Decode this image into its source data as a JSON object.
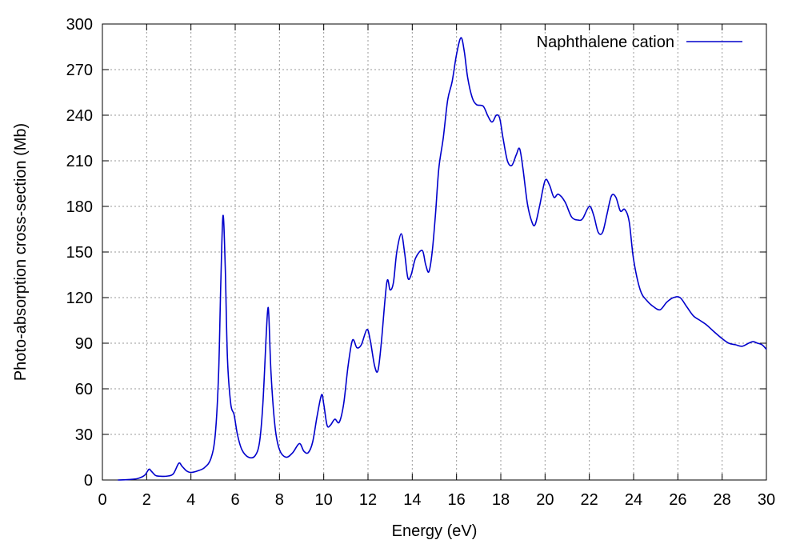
{
  "chart_data": {
    "type": "line",
    "title": "",
    "xlabel": "Energy (eV)",
    "ylabel": "Photo-absorption cross-section (Mb)",
    "xlim": [
      0,
      30
    ],
    "ylim": [
      0,
      300
    ],
    "xticks": [
      0,
      2,
      4,
      6,
      8,
      10,
      12,
      14,
      16,
      18,
      20,
      22,
      24,
      26,
      28,
      30
    ],
    "yticks": [
      0,
      30,
      60,
      90,
      120,
      150,
      180,
      210,
      240,
      270,
      300
    ],
    "grid": true,
    "legend_position": "top-right",
    "series": [
      {
        "name": "Naphthalene cation",
        "color": "#0000cc",
        "points": [
          [
            0.7,
            0
          ],
          [
            1.2,
            0.3
          ],
          [
            1.6,
            1
          ],
          [
            1.9,
            3
          ],
          [
            2.1,
            7
          ],
          [
            2.2,
            6
          ],
          [
            2.4,
            3
          ],
          [
            2.6,
            2.5
          ],
          [
            2.9,
            2.5
          ],
          [
            3.2,
            4
          ],
          [
            3.45,
            11
          ],
          [
            3.6,
            9
          ],
          [
            3.8,
            6
          ],
          [
            4.0,
            5
          ],
          [
            4.3,
            6
          ],
          [
            4.6,
            8
          ],
          [
            4.9,
            14
          ],
          [
            5.1,
            30
          ],
          [
            5.25,
            70
          ],
          [
            5.35,
            130
          ],
          [
            5.45,
            174
          ],
          [
            5.55,
            140
          ],
          [
            5.65,
            80
          ],
          [
            5.8,
            50
          ],
          [
            5.95,
            43
          ],
          [
            6.1,
            30
          ],
          [
            6.3,
            20
          ],
          [
            6.6,
            15
          ],
          [
            6.9,
            16
          ],
          [
            7.1,
            25
          ],
          [
            7.25,
            50
          ],
          [
            7.4,
            95
          ],
          [
            7.47,
            112
          ],
          [
            7.52,
            108
          ],
          [
            7.62,
            70
          ],
          [
            7.8,
            35
          ],
          [
            8.0,
            20
          ],
          [
            8.3,
            15
          ],
          [
            8.6,
            18
          ],
          [
            8.9,
            24
          ],
          [
            9.1,
            19
          ],
          [
            9.3,
            18
          ],
          [
            9.5,
            25
          ],
          [
            9.7,
            42
          ],
          [
            9.9,
            56
          ],
          [
            10.0,
            50
          ],
          [
            10.15,
            36
          ],
          [
            10.3,
            36
          ],
          [
            10.5,
            40
          ],
          [
            10.7,
            38
          ],
          [
            10.9,
            50
          ],
          [
            11.1,
            75
          ],
          [
            11.3,
            92
          ],
          [
            11.5,
            87
          ],
          [
            11.7,
            89
          ],
          [
            11.95,
            99
          ],
          [
            12.1,
            92
          ],
          [
            12.3,
            75
          ],
          [
            12.45,
            72
          ],
          [
            12.6,
            90
          ],
          [
            12.85,
            130
          ],
          [
            13.0,
            125
          ],
          [
            13.15,
            130
          ],
          [
            13.3,
            150
          ],
          [
            13.5,
            162
          ],
          [
            13.65,
            150
          ],
          [
            13.8,
            133
          ],
          [
            13.95,
            135
          ],
          [
            14.15,
            146
          ],
          [
            14.45,
            151
          ],
          [
            14.6,
            142
          ],
          [
            14.75,
            137
          ],
          [
            14.9,
            150
          ],
          [
            15.05,
            175
          ],
          [
            15.2,
            205
          ],
          [
            15.4,
            225
          ],
          [
            15.6,
            250
          ],
          [
            15.8,
            262
          ],
          [
            16.0,
            280
          ],
          [
            16.2,
            291
          ],
          [
            16.35,
            282
          ],
          [
            16.5,
            265
          ],
          [
            16.7,
            252
          ],
          [
            16.9,
            247
          ],
          [
            17.2,
            246
          ],
          [
            17.4,
            240
          ],
          [
            17.55,
            236
          ],
          [
            17.65,
            236
          ],
          [
            17.8,
            240
          ],
          [
            17.95,
            238
          ],
          [
            18.1,
            225
          ],
          [
            18.3,
            210
          ],
          [
            18.5,
            207
          ],
          [
            18.7,
            214
          ],
          [
            18.85,
            218
          ],
          [
            19.0,
            205
          ],
          [
            19.2,
            182
          ],
          [
            19.4,
            170
          ],
          [
            19.55,
            168
          ],
          [
            19.75,
            180
          ],
          [
            20.0,
            197
          ],
          [
            20.2,
            194
          ],
          [
            20.4,
            186
          ],
          [
            20.6,
            188
          ],
          [
            20.9,
            183
          ],
          [
            21.2,
            173
          ],
          [
            21.5,
            171
          ],
          [
            21.7,
            172
          ],
          [
            22.0,
            180
          ],
          [
            22.2,
            174
          ],
          [
            22.4,
            163
          ],
          [
            22.6,
            163
          ],
          [
            22.8,
            175
          ],
          [
            23.0,
            187
          ],
          [
            23.2,
            186
          ],
          [
            23.4,
            177
          ],
          [
            23.6,
            178
          ],
          [
            23.8,
            170
          ],
          [
            24.0,
            145
          ],
          [
            24.3,
            125
          ],
          [
            24.6,
            118
          ],
          [
            24.9,
            114
          ],
          [
            25.2,
            112
          ],
          [
            25.5,
            117
          ],
          [
            25.8,
            120
          ],
          [
            26.1,
            120
          ],
          [
            26.4,
            114
          ],
          [
            26.7,
            108
          ],
          [
            27.0,
            105
          ],
          [
            27.3,
            102
          ],
          [
            27.6,
            98
          ],
          [
            28.0,
            93
          ],
          [
            28.3,
            90
          ],
          [
            28.6,
            89
          ],
          [
            28.9,
            88
          ],
          [
            29.2,
            90
          ],
          [
            29.4,
            91
          ],
          [
            29.6,
            90
          ],
          [
            29.8,
            89
          ],
          [
            30.0,
            86
          ]
        ]
      }
    ]
  }
}
